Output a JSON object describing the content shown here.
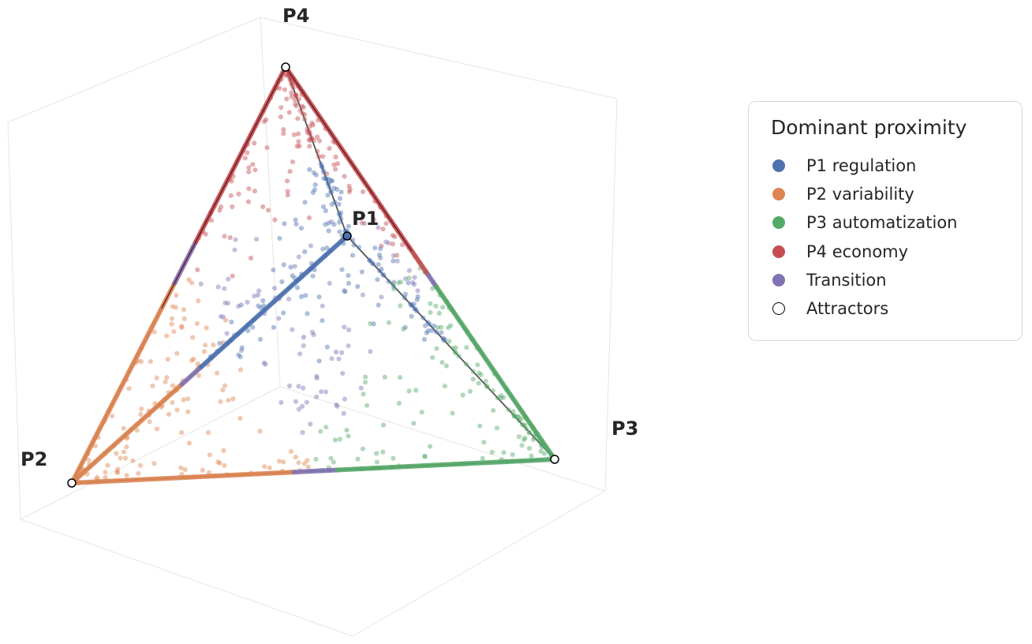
{
  "chart_data": {
    "type": "scatter",
    "projection": "3d-tetrahedron",
    "grid": true,
    "legend_placement": "right",
    "legend_title": "Dominant proximity",
    "vertices": {
      "P1": {
        "label": "P1",
        "color": "#4c72b0",
        "filled": true
      },
      "P2": {
        "label": "P2",
        "color": "#ffffff",
        "filled": false
      },
      "P3": {
        "label": "P3",
        "color": "#ffffff",
        "filled": false
      },
      "P4": {
        "label": "P4",
        "color": "#ffffff",
        "filled": false
      }
    },
    "series": [
      {
        "name": "P1 regulation",
        "color": "#4c72b0"
      },
      {
        "name": "P2 variability",
        "color": "#dd8452"
      },
      {
        "name": "P3 automatization",
        "color": "#55a868"
      },
      {
        "name": "P4 economy",
        "color": "#c44e52"
      },
      {
        "name": "Transition",
        "color": "#8172b3"
      },
      {
        "name": "Attractors",
        "color": "#ffffff",
        "edge": "#000000"
      }
    ],
    "edge_segments": [
      {
        "from": "P2",
        "to": "P1",
        "segments": [
          [
            0,
            0.4,
            "P2 variability"
          ],
          [
            0.4,
            0.47,
            "Transition"
          ],
          [
            0.47,
            1.0,
            "P1 regulation"
          ]
        ]
      },
      {
        "from": "P2",
        "to": "P4",
        "segments": [
          [
            0,
            0.48,
            "P2 variability"
          ],
          [
            0.48,
            0.58,
            "Transition"
          ],
          [
            0.58,
            1.0,
            "P4 economy"
          ]
        ]
      },
      {
        "from": "P4",
        "to": "P3",
        "segments": [
          [
            0,
            0.53,
            "P4 economy"
          ],
          [
            0.53,
            0.56,
            "Transition"
          ],
          [
            0.56,
            1.0,
            "P3 automatization"
          ]
        ]
      },
      {
        "from": "P2",
        "to": "P3",
        "segments": [
          [
            0,
            0.46,
            "P2 variability"
          ],
          [
            0.46,
            0.55,
            "Transition"
          ],
          [
            0.55,
            1.0,
            "P3 automatization"
          ]
        ]
      }
    ]
  }
}
